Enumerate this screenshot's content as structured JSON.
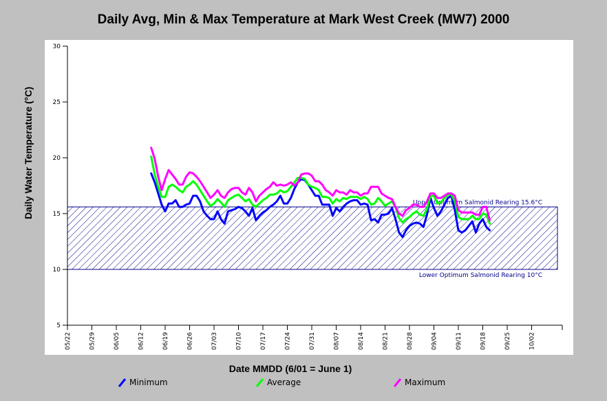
{
  "chart_data": {
    "type": "line",
    "title": "Daily Avg, Min & Max Temperature at Mark West Creek (MW7) 2000",
    "xlabel": "Date MMDD (6/01 = June 1)",
    "ylabel": "Daily Water Temperature (°C)",
    "ylim": [
      5,
      30
    ],
    "yticks": [
      5,
      10,
      15,
      20,
      25,
      30
    ],
    "xlim": [
      "05/22",
      "10/09"
    ],
    "xticks": [
      "05/22",
      "05/29",
      "06/05",
      "06/12",
      "06/19",
      "06/26",
      "07/03",
      "07/10",
      "07/17",
      "07/24",
      "07/31",
      "08/07",
      "08/14",
      "08/21",
      "08/28",
      "09/04",
      "09/11",
      "09/18",
      "09/25",
      "10/02"
    ],
    "grid": false,
    "legend_position": "bottom",
    "reference_band": {
      "upper": 15.6,
      "lower": 10,
      "upper_label": "Upper Optimum Salmonid Rearing 15.6°C",
      "lower_label": "Lower Optimum Salmonid Rearing 10°C",
      "color": "#00008b"
    },
    "start_date": "06/15",
    "series": [
      {
        "name": "Minimum",
        "color": "#0000ff",
        "values": [
          18.6,
          17.8,
          16.8,
          15.8,
          15.2,
          15.9,
          15.9,
          16.2,
          15.6,
          15.6,
          15.8,
          15.9,
          16.6,
          16.6,
          16.1,
          15.2,
          14.8,
          14.5,
          14.5,
          15.2,
          14.5,
          14.1,
          15.2,
          15.3,
          15.4,
          15.6,
          15.5,
          15.2,
          14.8,
          15.5,
          14.4,
          14.8,
          15.1,
          15.3,
          15.6,
          15.8,
          16.1,
          16.6,
          15.9,
          15.9,
          16.4,
          17.2,
          17.8,
          18.1,
          18.0,
          17.6,
          17.1,
          16.6,
          16.6,
          15.8,
          15.8,
          15.8,
          14.8,
          15.5,
          15.2,
          15.6,
          15.9,
          16.1,
          16.2,
          16.2,
          15.8,
          15.9,
          15.8,
          14.4,
          14.5,
          14.2,
          14.9,
          14.9,
          15.0,
          15.5,
          14.5,
          13.3,
          12.9,
          13.5,
          13.9,
          14.1,
          14.2,
          14.1,
          13.8,
          14.9,
          16.4,
          15.5,
          14.8,
          15.2,
          15.8,
          16.4,
          16.6,
          15.3,
          13.5,
          13.3,
          13.5,
          13.9,
          14.3,
          13.3,
          14.1,
          14.5,
          13.8,
          13.5
        ]
      },
      {
        "name": "Average",
        "color": "#00ff00",
        "values": [
          20.1,
          18.5,
          17.4,
          16.5,
          16.5,
          17.4,
          17.6,
          17.4,
          17.1,
          16.9,
          17.4,
          17.6,
          17.9,
          17.6,
          17.1,
          16.6,
          16.1,
          15.7,
          15.9,
          16.3,
          16.0,
          15.6,
          16.2,
          16.4,
          16.6,
          16.7,
          16.4,
          16.1,
          16.3,
          15.8,
          15.6,
          15.9,
          16.2,
          16.4,
          16.7,
          16.7,
          16.8,
          17.1,
          16.9,
          17.0,
          17.4,
          17.8,
          18.2,
          18.2,
          18.1,
          17.6,
          17.4,
          17.3,
          17.1,
          16.5,
          16.5,
          16.4,
          15.9,
          16.3,
          16.1,
          16.4,
          16.3,
          16.5,
          16.5,
          16.5,
          16.3,
          16.5,
          16.3,
          15.8,
          15.9,
          16.4,
          16.1,
          15.7,
          15.9,
          16.1,
          15.6,
          14.6,
          14.2,
          14.5,
          14.7,
          15.0,
          15.2,
          14.9,
          14.8,
          15.4,
          16.6,
          16.6,
          15.9,
          16.0,
          16.4,
          16.7,
          16.7,
          16.1,
          14.7,
          14.5,
          14.5,
          14.5,
          14.8,
          14.5,
          14.5,
          15.0,
          14.9,
          14.1
        ]
      },
      {
        "name": "Maximum",
        "color": "#ff00ff",
        "values": [
          20.9,
          19.9,
          18.3,
          17.1,
          18.1,
          18.9,
          18.5,
          18.1,
          17.6,
          17.6,
          18.3,
          18.7,
          18.6,
          18.3,
          17.9,
          17.4,
          16.9,
          16.4,
          16.7,
          17.1,
          16.6,
          16.4,
          16.9,
          17.2,
          17.3,
          17.3,
          16.9,
          16.7,
          17.3,
          16.9,
          16.1,
          16.6,
          16.9,
          17.2,
          17.4,
          17.8,
          17.5,
          17.6,
          17.5,
          17.6,
          17.8,
          17.5,
          17.8,
          18.5,
          18.6,
          18.6,
          18.4,
          17.9,
          17.9,
          17.6,
          17.1,
          16.9,
          16.6,
          17.1,
          16.9,
          16.9,
          16.7,
          17.1,
          16.9,
          16.9,
          16.6,
          16.8,
          16.8,
          17.4,
          17.4,
          17.4,
          16.8,
          16.6,
          16.4,
          16.3,
          15.6,
          15.0,
          14.8,
          15.3,
          15.5,
          15.8,
          15.8,
          15.6,
          15.6,
          16.1,
          16.8,
          16.8,
          16.4,
          16.4,
          16.6,
          16.8,
          16.8,
          16.6,
          15.3,
          15.1,
          15.1,
          15.1,
          15.1,
          14.9,
          14.9,
          15.6,
          15.6,
          14.4
        ]
      }
    ]
  }
}
